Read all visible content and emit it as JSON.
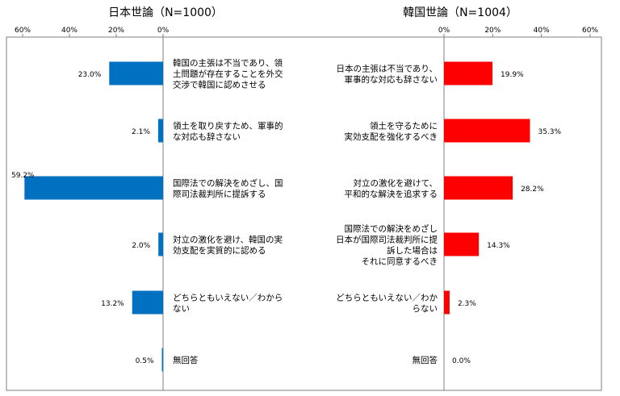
{
  "chart_data": [
    {
      "type": "bar",
      "title": "日本世論（N=1000）",
      "xlim": [
        0,
        60
      ],
      "ticks": [
        "0%",
        "20%",
        "40%",
        "60%"
      ],
      "bar_color": "#0070C0",
      "categories": [
        [
          "韓国の主張は不当であり、領",
          "土問題が存在することを外交",
          "交渉で韓国に認めさせる"
        ],
        [
          "領土を取り戻すため、軍事的",
          "な対応も辞さない"
        ],
        [
          "国際法での解決をめざし、国",
          "際司法裁判所に提訴する"
        ],
        [
          "対立の激化を避け、韓国の実",
          "効支配を実質的に認める"
        ],
        [
          "どちらともいえない／わから",
          "ない"
        ],
        [
          "無回答"
        ]
      ],
      "values": [
        23.0,
        2.1,
        59.2,
        2.0,
        13.2,
        0.5
      ],
      "value_labels": [
        "23.0%",
        "2.1%",
        "59.2%",
        "2.0%",
        "13.2%",
        "0.5%"
      ]
    },
    {
      "type": "bar",
      "title": "韓国世論（N=1004）",
      "xlim": [
        0,
        60
      ],
      "ticks": [
        "0%",
        "20%",
        "40%",
        "60%"
      ],
      "bar_color": "#FF0000",
      "categories": [
        [
          "日本の主張は不当であり、",
          "軍事的な対応も辞さない"
        ],
        [
          "領土を守るために",
          "実効支配を強化するべき"
        ],
        [
          "対立の激化を避けて、",
          "平和的な解決を追求する"
        ],
        [
          "国際法での解決をめざし",
          "日本が国際司法裁判所に提",
          "訴した場合は",
          "それに同意するべき"
        ],
        [
          "どちらともいえない／わか",
          "らない"
        ],
        [
          "無回答"
        ]
      ],
      "values": [
        19.9,
        35.3,
        28.2,
        14.3,
        2.3,
        0.0
      ],
      "value_labels": [
        "19.9%",
        "35.3%",
        "28.2%",
        "14.3%",
        "2.3%",
        "0.0%"
      ]
    }
  ]
}
